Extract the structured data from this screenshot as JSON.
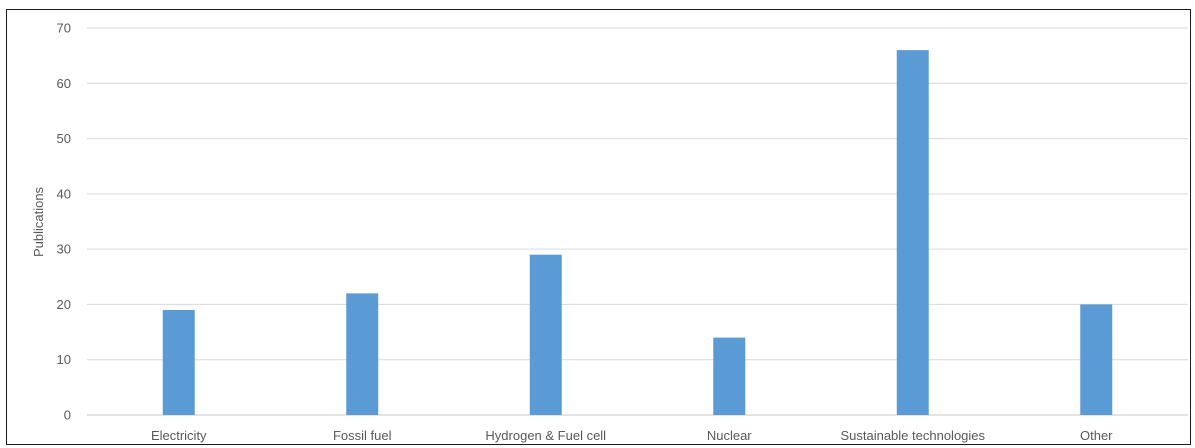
{
  "chart_data": {
    "type": "bar",
    "title": "",
    "xlabel": "",
    "ylabel": "Publications",
    "categories": [
      "Electricity",
      "Fossil fuel",
      "Hydrogen & Fuel cell",
      "Nuclear",
      "Sustainable technologies",
      "Other"
    ],
    "values": [
      19,
      22,
      29,
      14,
      66,
      20
    ],
    "ylim": [
      0,
      70
    ],
    "yticks": [
      "0",
      "10",
      "20",
      "30",
      "40",
      "50",
      "60",
      "70"
    ],
    "grid": true,
    "legend": "none",
    "bar_color": "#5b9bd5",
    "grid_color": "#d9d9d9"
  }
}
